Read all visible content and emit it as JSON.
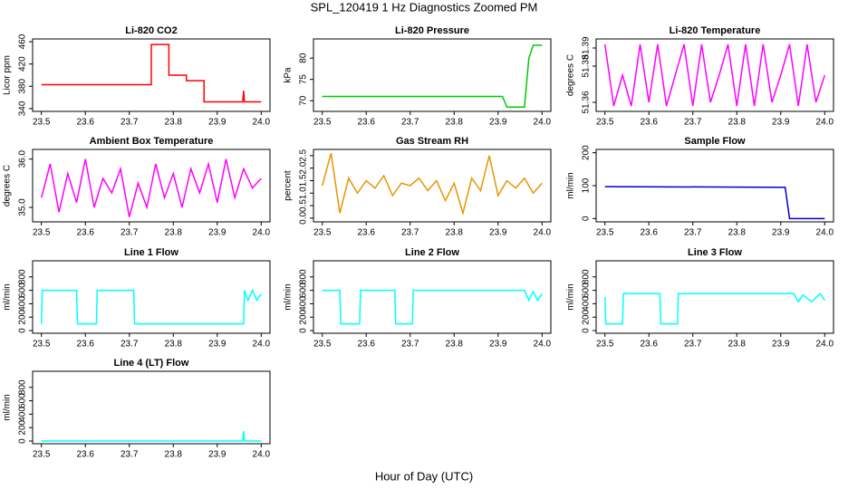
{
  "title": "SPL_120419  1 Hz Diagnostics Zoomed PM",
  "xlabel": "Hour of Day (UTC)",
  "chart_data": [
    {
      "type": "line",
      "title": "Li-820 CO2",
      "ylabel": "Licor ppm",
      "color": "#ff0000",
      "x": [
        23.5,
        23.75,
        23.75,
        23.79,
        23.79,
        23.83,
        23.83,
        23.87,
        23.87,
        23.958,
        23.96,
        23.962,
        24.0
      ],
      "values": [
        383,
        383,
        455,
        455,
        400,
        400,
        390,
        390,
        352,
        352,
        372,
        352,
        352
      ],
      "xlim": [
        23.48,
        24.02
      ],
      "xticks": [
        23.5,
        23.6,
        23.7,
        23.8,
        23.9,
        {
          "value": 24,
          "label": "24.0"
        }
      ],
      "ylim": [
        335,
        465
      ],
      "yticks": [
        340,
        380,
        420,
        460
      ]
    },
    {
      "type": "line",
      "title": "Li-820 Pressure",
      "ylabel": "kPa",
      "color": "#00cc00",
      "x": [
        23.5,
        23.91,
        23.92,
        23.96,
        23.97,
        23.98,
        24.0
      ],
      "values": [
        71,
        71,
        68.5,
        68.5,
        80,
        83,
        83
      ],
      "xlim": [
        23.48,
        24.02
      ],
      "xticks": [
        23.5,
        23.6,
        23.7,
        23.8,
        23.9,
        {
          "value": 24,
          "label": "24.0"
        }
      ],
      "ylim": [
        67.5,
        84.5
      ],
      "yticks": [
        70,
        75,
        80
      ]
    },
    {
      "type": "line",
      "title": "Li-820 Temperature",
      "ylabel": "degrees C",
      "color": "#ff00ff",
      "x": [
        23.5,
        23.52,
        23.54,
        23.56,
        23.58,
        23.6,
        23.62,
        23.64,
        23.66,
        23.68,
        23.7,
        23.72,
        23.74,
        23.76,
        23.78,
        23.8,
        23.82,
        23.84,
        23.86,
        23.88,
        23.9,
        23.92,
        23.94,
        23.96,
        23.98,
        24.0
      ],
      "values": [
        51.392,
        51.358,
        51.375,
        51.358,
        51.392,
        51.36,
        51.392,
        51.358,
        51.375,
        51.392,
        51.358,
        51.392,
        51.36,
        51.375,
        51.392,
        51.358,
        51.392,
        51.358,
        51.392,
        51.36,
        51.375,
        51.392,
        51.358,
        51.392,
        51.36,
        51.375
      ],
      "xlim": [
        23.48,
        24.02
      ],
      "xticks": [
        23.5,
        23.6,
        23.7,
        23.8,
        23.9,
        {
          "value": 24,
          "label": "24.0"
        }
      ],
      "ylim": [
        51.355,
        51.395
      ],
      "yticks": [
        51.36,
        51.38,
        51.39
      ]
    },
    {
      "type": "line",
      "title": "Ambient Box Temperature",
      "ylabel": "degrees C",
      "color": "#ff00ff",
      "x": [
        23.5,
        23.52,
        23.54,
        23.56,
        23.58,
        23.6,
        23.62,
        23.64,
        23.66,
        23.68,
        23.7,
        23.72,
        23.74,
        23.76,
        23.78,
        23.8,
        23.82,
        23.84,
        23.86,
        23.88,
        23.9,
        23.92,
        23.94,
        23.96,
        23.98,
        24.0
      ],
      "values": [
        35.2,
        35.9,
        34.9,
        35.7,
        35.1,
        36.0,
        35.0,
        35.6,
        35.3,
        35.8,
        34.8,
        35.5,
        35.0,
        35.9,
        35.2,
        35.7,
        35.0,
        35.8,
        35.3,
        35.9,
        35.1,
        36.0,
        35.2,
        35.8,
        35.4,
        35.6
      ],
      "xlim": [
        23.48,
        24.02
      ],
      "xticks": [
        23.5,
        23.6,
        23.7,
        23.8,
        23.9,
        {
          "value": 24,
          "label": "24.0"
        }
      ],
      "ylim": [
        34.7,
        36.2
      ],
      "yticks": [
        {
          "value": 35,
          "label": "35.0"
        },
        {
          "value": 36,
          "label": "36.0"
        }
      ]
    },
    {
      "type": "line",
      "title": "Gas Stream RH",
      "ylabel": "percent",
      "color": "#e69500",
      "x": [
        23.5,
        23.52,
        23.54,
        23.56,
        23.58,
        23.6,
        23.62,
        23.64,
        23.66,
        23.68,
        23.7,
        23.72,
        23.74,
        23.76,
        23.78,
        23.8,
        23.82,
        23.84,
        23.86,
        23.88,
        23.9,
        23.92,
        23.94,
        23.96,
        23.98,
        24.0
      ],
      "values": [
        1.3,
        2.6,
        0.2,
        1.6,
        1.0,
        1.5,
        1.2,
        1.7,
        0.9,
        1.4,
        1.3,
        1.6,
        1.1,
        1.5,
        0.7,
        1.4,
        0.2,
        1.6,
        1.1,
        2.5,
        0.9,
        1.5,
        1.2,
        1.6,
        1.0,
        1.4
      ],
      "xlim": [
        23.48,
        24.02
      ],
      "xticks": [
        23.5,
        23.6,
        23.7,
        23.8,
        23.9,
        {
          "value": 24,
          "label": "24.0"
        }
      ],
      "ylim": [
        -0.15,
        2.75
      ],
      "yticks": [
        {
          "value": 0,
          "label": "0.0"
        },
        0.5,
        {
          "value": 1,
          "label": "1.0"
        },
        1.5,
        {
          "value": 2,
          "label": "2.0"
        },
        2.5
      ]
    },
    {
      "type": "line",
      "title": "Sample Flow",
      "ylabel": "ml/min",
      "color": "#0000cc",
      "x": [
        23.5,
        23.91,
        23.92,
        24.0
      ],
      "values": [
        97,
        95,
        0,
        0
      ],
      "xlim": [
        23.48,
        24.02
      ],
      "xticks": [
        23.5,
        23.6,
        23.7,
        23.8,
        23.9,
        {
          "value": 24,
          "label": "24.0"
        }
      ],
      "ylim": [
        -10,
        210
      ],
      "yticks": [
        0,
        100,
        200
      ]
    },
    {
      "type": "line",
      "title": "Line 1 Flow",
      "ylabel": "ml/min",
      "color": "#00ffff",
      "x": [
        23.5,
        23.502,
        23.58,
        23.582,
        23.625,
        23.627,
        23.71,
        23.712,
        23.96,
        23.962,
        23.97,
        23.98,
        23.99,
        24.0
      ],
      "values": [
        100,
        600,
        600,
        100,
        100,
        600,
        600,
        100,
        100,
        600,
        450,
        600,
        450,
        550
      ],
      "xlim": [
        23.48,
        24.02
      ],
      "xticks": [
        23.5,
        23.6,
        23.7,
        23.8,
        23.9,
        {
          "value": 24,
          "label": "24.0"
        }
      ],
      "ylim": [
        -40,
        1040
      ],
      "yticks": [
        0,
        200,
        400,
        600,
        800
      ]
    },
    {
      "type": "line",
      "title": "Line 2 Flow",
      "ylabel": "ml/min",
      "color": "#00ffff",
      "x": [
        23.5,
        23.54,
        23.542,
        23.585,
        23.587,
        23.665,
        23.667,
        23.705,
        23.707,
        23.96,
        23.97,
        23.98,
        23.99,
        24.0
      ],
      "values": [
        600,
        600,
        100,
        100,
        600,
        600,
        100,
        100,
        600,
        600,
        450,
        580,
        450,
        550
      ],
      "xlim": [
        23.48,
        24.02
      ],
      "xticks": [
        23.5,
        23.6,
        23.7,
        23.8,
        23.9,
        {
          "value": 24,
          "label": "24.0"
        }
      ],
      "ylim": [
        -40,
        1040
      ],
      "yticks": [
        0,
        200,
        400,
        600,
        800
      ]
    },
    {
      "type": "line",
      "title": "Line 3 Flow",
      "ylabel": "ml/min",
      "color": "#00ffff",
      "x": [
        23.5,
        23.502,
        23.54,
        23.542,
        23.625,
        23.627,
        23.665,
        23.667,
        23.93,
        23.94,
        23.95,
        23.97,
        23.99,
        24.0
      ],
      "values": [
        500,
        100,
        100,
        550,
        550,
        100,
        100,
        550,
        550,
        430,
        530,
        430,
        550,
        450
      ],
      "xlim": [
        23.48,
        24.02
      ],
      "xticks": [
        23.5,
        23.6,
        23.7,
        23.8,
        23.9,
        {
          "value": 24,
          "label": "24.0"
        }
      ],
      "ylim": [
        -40,
        1040
      ],
      "yticks": [
        0,
        200,
        400,
        600,
        800
      ]
    },
    {
      "type": "line",
      "title": "Line 4 (LT) Flow",
      "ylabel": "ml/min",
      "color": "#00ffff",
      "x": [
        23.5,
        23.958,
        23.96,
        23.962,
        24.0
      ],
      "values": [
        0,
        0,
        150,
        0,
        0
      ],
      "xlim": [
        23.48,
        24.02
      ],
      "xticks": [
        23.5,
        23.6,
        23.7,
        23.8,
        23.9,
        {
          "value": 24,
          "label": "24.0"
        }
      ],
      "ylim": [
        -40,
        1040
      ],
      "yticks": [
        0,
        200,
        400,
        600,
        800
      ]
    }
  ]
}
